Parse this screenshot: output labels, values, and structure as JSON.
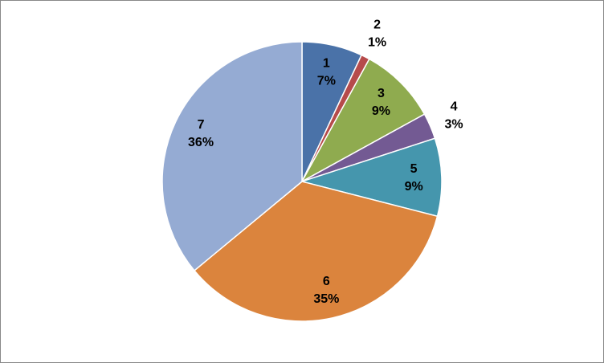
{
  "chart_data": {
    "type": "pie",
    "categories": [
      "1",
      "2",
      "3",
      "4",
      "5",
      "6",
      "7"
    ],
    "values": [
      7,
      1,
      9,
      3,
      9,
      35,
      36
    ],
    "value_labels": [
      "7%",
      "1%",
      "9%",
      "3%",
      "9%",
      "35%",
      "36%"
    ],
    "colors": [
      "#4a72a8",
      "#b64b4b",
      "#8fab4f",
      "#735a93",
      "#4596ad",
      "#db843d",
      "#95abd3"
    ]
  }
}
